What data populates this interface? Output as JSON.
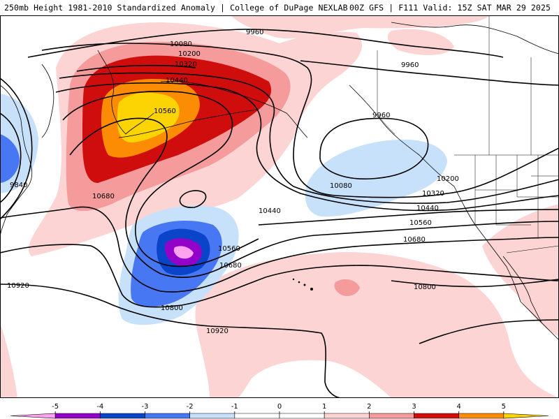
{
  "header": {
    "left": "250mb Height 1981-2010 Standardized Anomaly | College of DuPage NEXLAB",
    "right": "00Z GFS | F111 Valid: 15Z SAT MAR 29 2025"
  },
  "colors": {
    "p1": "#fcd4d4",
    "p2": "#f59b9b",
    "p3": "#cf0d0d",
    "p4": "#fb8c04",
    "p5": "#fcd404",
    "n1": "#c8e1fa",
    "n2": "#4777f2",
    "n3": "#0a44c8",
    "n4": "#9302c8",
    "n5": "#fca2ee"
  },
  "map": {
    "contour_labels": [
      {
        "id": "lbl-9960-a",
        "text": "9960"
      },
      {
        "id": "lbl-9960-b",
        "text": "9960"
      },
      {
        "id": "lbl-9960-c",
        "text": "9960"
      },
      {
        "id": "lbl-10080-a",
        "text": "10080"
      },
      {
        "id": "lbl-10200-a",
        "text": "10200"
      },
      {
        "id": "lbl-10320-a",
        "text": "10320"
      },
      {
        "id": "lbl-10440-a",
        "text": "10440"
      },
      {
        "id": "lbl-10560-a",
        "text": "10560"
      },
      {
        "id": "lbl-9840",
        "text": "9840"
      },
      {
        "id": "lbl-10680-a",
        "text": "10680"
      },
      {
        "id": "lbl-10440-b",
        "text": "10440"
      },
      {
        "id": "lbl-10560-b",
        "text": "10560"
      },
      {
        "id": "lbl-10680-b",
        "text": "10680"
      },
      {
        "id": "lbl-10080-b",
        "text": "10080"
      },
      {
        "id": "lbl-10200-b",
        "text": "10200"
      },
      {
        "id": "lbl-10320-b",
        "text": "10320"
      },
      {
        "id": "lbl-10440-c",
        "text": "10440"
      },
      {
        "id": "lbl-10560-c",
        "text": "10560"
      },
      {
        "id": "lbl-10680-c",
        "text": "10680"
      },
      {
        "id": "lbl-10800-a",
        "text": "10800"
      },
      {
        "id": "lbl-10920-a",
        "text": "10920"
      },
      {
        "id": "lbl-10800-b",
        "text": "10800"
      },
      {
        "id": "lbl-10920-b",
        "text": "10920"
      }
    ]
  },
  "colorbar": {
    "ticks": [
      "-5",
      "-4",
      "-3",
      "-2",
      "-1",
      "0",
      "1",
      "2",
      "3",
      "4",
      "5"
    ],
    "bins": [
      {
        "key": "n5",
        "color": "#fca2ee"
      },
      {
        "key": "n4",
        "color": "#9302c8"
      },
      {
        "key": "n3",
        "color": "#0a44c8"
      },
      {
        "key": "n2",
        "color": "#4777f2"
      },
      {
        "key": "n1",
        "color": "#c8e1fa"
      },
      {
        "key": "z1",
        "color": "#ffffff"
      },
      {
        "key": "z2",
        "color": "#ffffff"
      },
      {
        "key": "p1",
        "color": "#fcd4d4"
      },
      {
        "key": "p2",
        "color": "#f59b9b"
      },
      {
        "key": "p3",
        "color": "#cf0d0d"
      },
      {
        "key": "p4",
        "color": "#fb8c04"
      },
      {
        "key": "p5",
        "color": "#fcd404"
      }
    ]
  }
}
